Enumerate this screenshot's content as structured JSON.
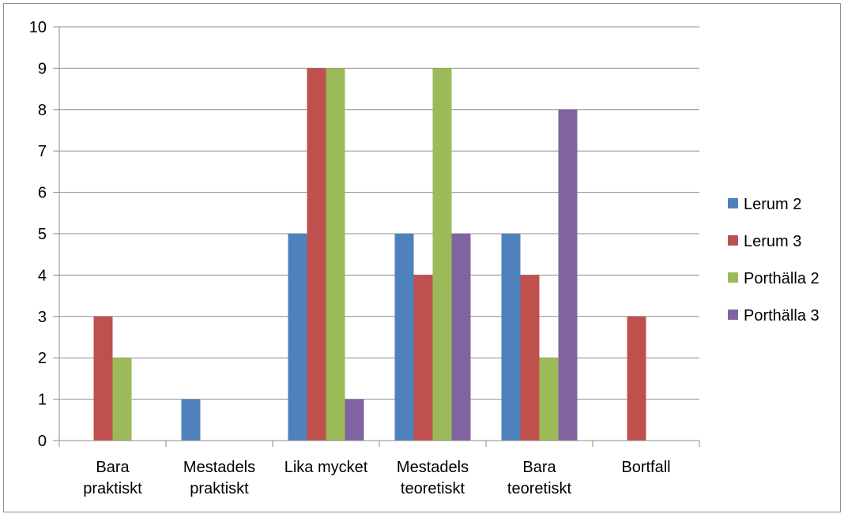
{
  "chart_data": {
    "type": "bar",
    "categories": [
      [
        "Bara",
        "praktiskt"
      ],
      [
        "Mestadels",
        "praktiskt"
      ],
      [
        "Lika mycket"
      ],
      [
        "Mestadels",
        "teoretiskt"
      ],
      [
        "Bara",
        "teoretiskt"
      ],
      [
        "Bortfall"
      ]
    ],
    "series": [
      {
        "name": "Lerum 2",
        "color": "#4f81bd",
        "values": [
          0,
          1,
          5,
          5,
          5,
          0
        ]
      },
      {
        "name": "Lerum 3",
        "color": "#c0504d",
        "values": [
          3,
          0,
          9,
          4,
          4,
          3
        ]
      },
      {
        "name": "Porthälla 2",
        "color": "#9bbb59",
        "values": [
          2,
          0,
          9,
          9,
          2,
          0
        ]
      },
      {
        "name": "Porthälla 3",
        "color": "#8064a2",
        "values": [
          0,
          0,
          1,
          5,
          8,
          0
        ]
      }
    ],
    "ylim": [
      0,
      10
    ],
    "yticks": [
      0,
      1,
      2,
      3,
      4,
      5,
      6,
      7,
      8,
      9,
      10
    ],
    "grid": true,
    "legend": "right"
  }
}
